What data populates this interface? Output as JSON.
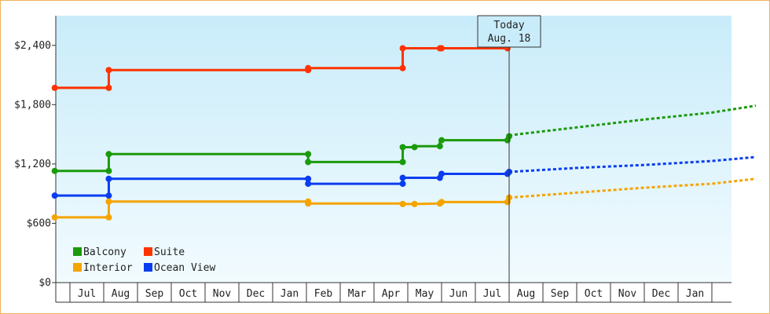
{
  "chart_data": {
    "type": "line",
    "title": "",
    "xlabel": "",
    "ylabel": "",
    "ylim": [
      0,
      2700
    ],
    "y_ticks": [
      "$0",
      "$600",
      "$1,200",
      "$1,800",
      "$2,400"
    ],
    "y_tick_values": [
      0,
      600,
      1200,
      1800,
      2400
    ],
    "months": [
      "Jul",
      "Aug",
      "Sep",
      "Oct",
      "Nov",
      "Dec",
      "Jan",
      "Feb",
      "Mar",
      "Apr",
      "May",
      "Jun",
      "Jul",
      "Aug",
      "Sep",
      "Oct",
      "Nov",
      "Dec",
      "Jan"
    ],
    "x_unit": "month index (0 = Jul, 13 = Aug. 18)",
    "today_marker": {
      "line1": "Today",
      "line2": "Aug. 18",
      "x": 13.0
    },
    "legend_position": "bottom-left",
    "grid": false,
    "series": [
      {
        "name": "Suite",
        "color": "#ff3300",
        "points": [
          [
            -0.45,
            1970
          ],
          [
            1.15,
            1970
          ],
          [
            1.15,
            2150
          ],
          [
            7.05,
            2150
          ],
          [
            7.05,
            2170
          ],
          [
            9.85,
            2170
          ],
          [
            9.85,
            2370
          ],
          [
            11.0,
            2370
          ],
          [
            12.95,
            2370
          ]
        ],
        "markers": [
          [
            -0.45,
            1970
          ],
          [
            1.15,
            1970
          ],
          [
            1.15,
            2150
          ],
          [
            7.05,
            2150
          ],
          [
            7.05,
            2170
          ],
          [
            9.85,
            2170
          ],
          [
            9.85,
            2370
          ],
          [
            10.95,
            2370
          ],
          [
            11.0,
            2370
          ],
          [
            12.95,
            2370
          ]
        ],
        "projection": []
      },
      {
        "name": "Balcony",
        "color": "#1b9a0b",
        "points": [
          [
            -0.45,
            1130
          ],
          [
            1.15,
            1130
          ],
          [
            1.15,
            1300
          ],
          [
            7.05,
            1300
          ],
          [
            7.05,
            1220
          ],
          [
            9.85,
            1220
          ],
          [
            9.85,
            1370
          ],
          [
            10.2,
            1370
          ],
          [
            10.2,
            1380
          ],
          [
            10.95,
            1380
          ],
          [
            10.95,
            1440
          ],
          [
            12.95,
            1440
          ],
          [
            12.95,
            1480
          ]
        ],
        "markers": [
          [
            -0.45,
            1130
          ],
          [
            1.15,
            1130
          ],
          [
            1.15,
            1300
          ],
          [
            7.05,
            1300
          ],
          [
            7.05,
            1220
          ],
          [
            9.85,
            1220
          ],
          [
            9.85,
            1370
          ],
          [
            10.2,
            1370
          ],
          [
            10.95,
            1380
          ],
          [
            11.0,
            1440
          ],
          [
            12.95,
            1440
          ],
          [
            13.0,
            1480
          ]
        ],
        "projection": [
          [
            13.0,
            1490
          ],
          [
            15.0,
            1570
          ],
          [
            17.0,
            1650
          ],
          [
            19.0,
            1720
          ],
          [
            20.3,
            1790
          ]
        ]
      },
      {
        "name": "Ocean View",
        "color": "#0a3df0",
        "points": [
          [
            -0.45,
            880
          ],
          [
            1.15,
            880
          ],
          [
            1.15,
            1050
          ],
          [
            7.05,
            1050
          ],
          [
            7.05,
            1000
          ],
          [
            9.85,
            1000
          ],
          [
            9.85,
            1060
          ],
          [
            10.95,
            1060
          ],
          [
            10.95,
            1100
          ],
          [
            12.95,
            1100
          ],
          [
            12.95,
            1120
          ]
        ],
        "markers": [
          [
            -0.45,
            880
          ],
          [
            1.15,
            880
          ],
          [
            1.15,
            1050
          ],
          [
            7.05,
            1050
          ],
          [
            7.05,
            1000
          ],
          [
            9.85,
            1000
          ],
          [
            9.85,
            1060
          ],
          [
            10.95,
            1060
          ],
          [
            11.0,
            1100
          ],
          [
            12.95,
            1100
          ],
          [
            13.0,
            1120
          ]
        ],
        "projection": [
          [
            13.0,
            1120
          ],
          [
            15.0,
            1160
          ],
          [
            17.0,
            1190
          ],
          [
            19.0,
            1230
          ],
          [
            20.3,
            1270
          ]
        ]
      },
      {
        "name": "Interior",
        "color": "#f5a400",
        "points": [
          [
            -0.45,
            660
          ],
          [
            1.15,
            660
          ],
          [
            1.15,
            820
          ],
          [
            7.05,
            820
          ],
          [
            7.05,
            800
          ],
          [
            9.85,
            800
          ],
          [
            9.85,
            795
          ],
          [
            10.2,
            795
          ],
          [
            10.95,
            800
          ],
          [
            10.95,
            815
          ],
          [
            12.95,
            815
          ],
          [
            12.95,
            860
          ]
        ],
        "markers": [
          [
            -0.45,
            660
          ],
          [
            1.15,
            660
          ],
          [
            1.15,
            820
          ],
          [
            7.05,
            820
          ],
          [
            7.05,
            800
          ],
          [
            9.85,
            795
          ],
          [
            10.2,
            795
          ],
          [
            10.95,
            800
          ],
          [
            11.0,
            815
          ],
          [
            12.95,
            815
          ],
          [
            13.0,
            860
          ]
        ],
        "projection": [
          [
            13.0,
            860
          ],
          [
            15.0,
            910
          ],
          [
            17.0,
            960
          ],
          [
            19.0,
            1000
          ],
          [
            20.3,
            1050
          ]
        ]
      }
    ],
    "legend": [
      {
        "name": "Balcony",
        "color": "#1b9a0b"
      },
      {
        "name": "Suite",
        "color": "#ff3300"
      },
      {
        "name": "Interior",
        "color": "#f5a400"
      },
      {
        "name": "Ocean View",
        "color": "#0a3df0"
      }
    ]
  }
}
